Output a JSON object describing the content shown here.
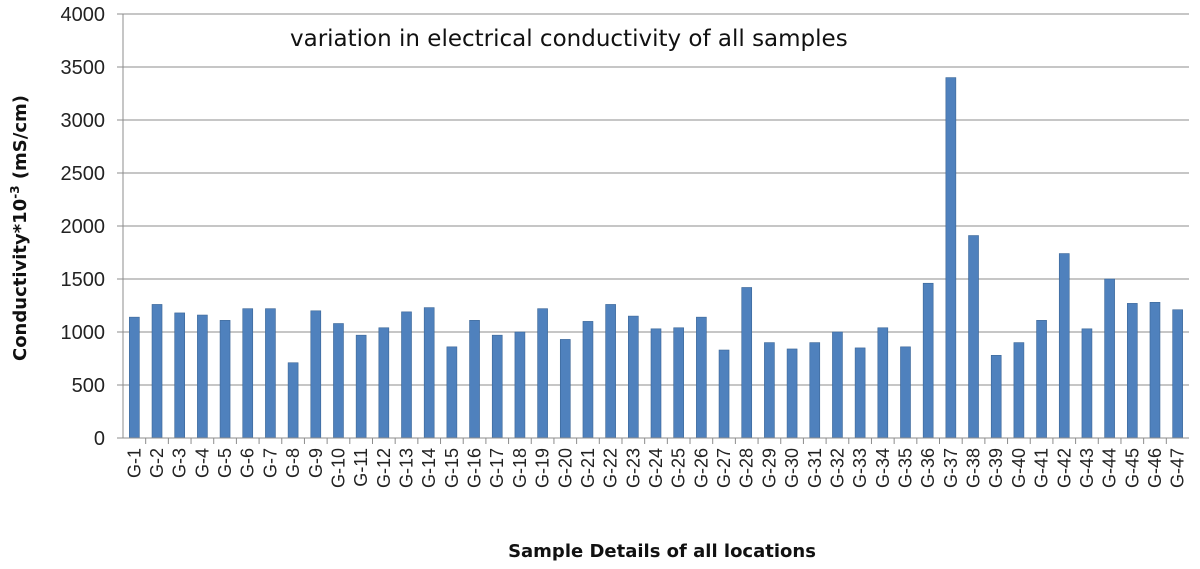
{
  "chart_data": {
    "type": "bar",
    "title": "variation in electrical conductivity  of all samples",
    "xlabel": "Sample Details of all locations",
    "ylabel": {
      "prefix": "Conductivity*10",
      "superscript": "-3",
      "suffix": " (mS/cm)"
    },
    "ylim": [
      0,
      4000
    ],
    "yticks": [
      0,
      500,
      1000,
      1500,
      2000,
      2500,
      3000,
      3500,
      4000
    ],
    "grid": true,
    "legend": "none",
    "bar_color": "#4F81BD",
    "bar_edge_color": "#3A6596",
    "categories": [
      "G-1",
      "G-2",
      "G-3",
      "G-4",
      "G-5",
      "G-6",
      "G-7",
      "G-8",
      "G-9",
      "G-10",
      "G-11",
      "G-12",
      "G-13",
      "G-14",
      "G-15",
      "G-16",
      "G-17",
      "G-18",
      "G-19",
      "G-20",
      "G-21",
      "G-22",
      "G-23",
      "G-24",
      "G-25",
      "G-26",
      "G-27",
      "G-28",
      "G-29",
      "G-30",
      "G-31",
      "G-32",
      "G-33",
      "G-34",
      "G-35",
      "G-36",
      "G-37",
      "G-38",
      "G-39",
      "G-40",
      "G-41",
      "G-42",
      "G-43",
      "G-44",
      "G-45",
      "G-46",
      "G-47"
    ],
    "values": [
      1140,
      1260,
      1180,
      1160,
      1110,
      1220,
      1220,
      710,
      1200,
      1080,
      970,
      1040,
      1190,
      1230,
      860,
      1110,
      970,
      1000,
      1220,
      930,
      1100,
      1260,
      1150,
      1030,
      1040,
      1140,
      830,
      1420,
      900,
      840,
      900,
      1000,
      850,
      1040,
      860,
      1460,
      3400,
      1910,
      780,
      900,
      1110,
      1740,
      1030,
      1500,
      1270,
      1280,
      1210
    ]
  }
}
